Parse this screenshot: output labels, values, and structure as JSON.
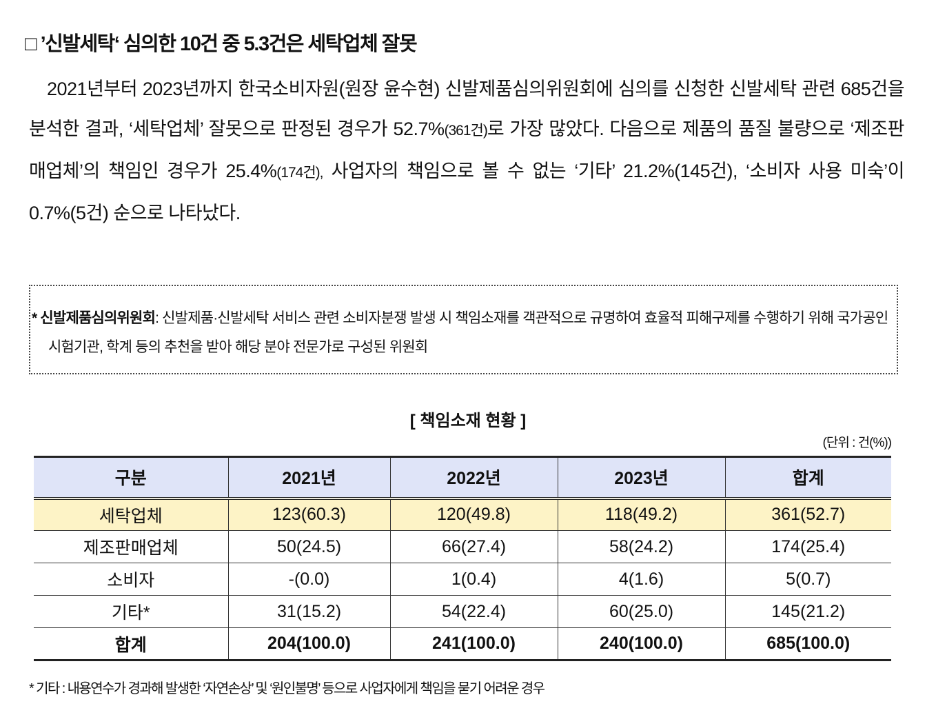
{
  "heading": "□ ’신발세탁‘ 심의한 10건 중 5.3건은 세탁업체 잘못",
  "paragraph": [
    "2021년부터 2023년까지 한국소비자원(원장 윤수현) 신발제품심의위원회에 심의를 신청한 신발세탁 관련 685건을 분석한 결과, ‘세탁업체’ 잘못으로 판정된 경우가 52.7%",
    "(361건)",
    "로 가장 많았다. 다음으로 제품의 품질 불량으로 ‘제조판매업체’의 책임인 경우가 25.4%",
    "(174건),",
    "사업자의 책임으로 볼 수 없는 ‘기타’ 21.2%(145건), ‘소비자 사용 미숙’이 0.7%(5건) 순으로 나타났다."
  ],
  "note": {
    "label": "* 신발제품심의위원회",
    "text": ": 신발제품·신발세탁 서비스 관련 소비자분쟁 발생 시 책임소재를 객관적으로 규명하여 효율적 피해구제를 수행하기 위해 국가공인 시험기관, 학계 등의 추천을 받아 해당 분야 전문가로 구성된 위원회"
  },
  "table": {
    "title": "[ 책임소재 현황 ]",
    "unit": "(단위 : 건(%))",
    "header": [
      "구분",
      "2021년",
      "2022년",
      "2023년",
      "합계"
    ],
    "rows": [
      [
        "세탁업체",
        "123(60.3)",
        "120(49.8)",
        "118(49.2)",
        "361(52.7)"
      ],
      [
        "제조판매업체",
        "50(24.5)",
        "66(27.4)",
        "58(24.2)",
        "174(25.4)"
      ],
      [
        "소비자",
        "-(0.0)",
        "1(0.4)",
        "4(1.6)",
        "5(0.7)"
      ],
      [
        "기타*",
        "31(15.2)",
        "54(22.4)",
        "60(25.0)",
        "145(21.2)"
      ],
      [
        "합계",
        "204(100.0)",
        "241(100.0)",
        "240(100.0)",
        "685(100.0)"
      ]
    ],
    "footnote": "* 기타 : 내용연수가 경과해 발생한 ‘자연손상’ 및 ‘원인불명’ 등으로 사업자에게 책임을 묻기 어려운 경우"
  }
}
